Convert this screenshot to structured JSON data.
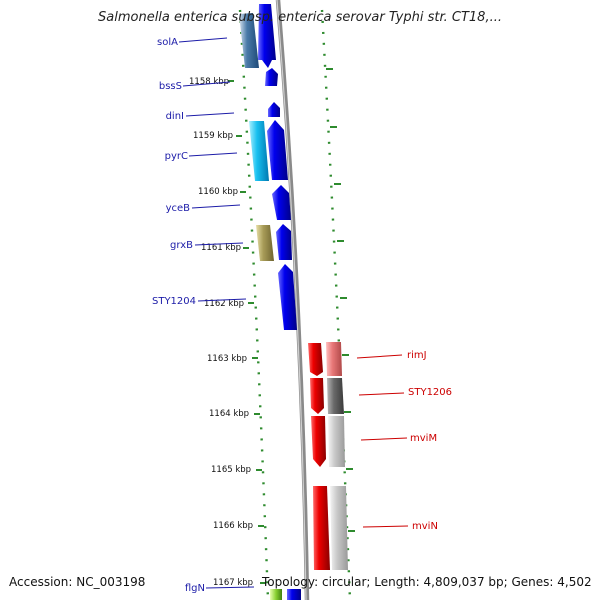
{
  "title": "Salmonella enterica subsp. enterica serovar Typhi str. CT18,...",
  "accession": "Accession: NC_003198",
  "summary": "Topology: circular; Length: 4,809,037 bp; Genes: 4,502",
  "ticks": [
    "1158 kbp",
    "1159 kbp",
    "1160 kbp",
    "1161 kbp",
    "1162 kbp",
    "1163 kbp",
    "1164 kbp",
    "1165 kbp",
    "1166 kbp",
    "1167 kbp"
  ],
  "left_genes": [
    {
      "label": "solA",
      "color": "#1c1ca8"
    },
    {
      "label": "bssS",
      "color": "#1c1ca8"
    },
    {
      "label": "dinI",
      "color": "#1c1ca8"
    },
    {
      "label": "pyrC",
      "color": "#1c1ca8"
    },
    {
      "label": "yceB",
      "color": "#1c1ca8"
    },
    {
      "label": "grxB",
      "color": "#1c1ca8"
    },
    {
      "label": "STY1204",
      "color": "#1c1ca8"
    },
    {
      "label": "flgN",
      "color": "#1c1ca8"
    }
  ],
  "right_genes": [
    {
      "label": "rimJ",
      "color": "#cc0000"
    },
    {
      "label": "STY1206",
      "color": "#cc0000"
    },
    {
      "label": "mviM",
      "color": "#cc0000"
    },
    {
      "label": "mviN",
      "color": "#cc0000"
    }
  ],
  "colors": {
    "backbone": "#888888",
    "dots": "#2e8b2e",
    "forward": "#0000ee",
    "reverse": "#ee0000"
  }
}
